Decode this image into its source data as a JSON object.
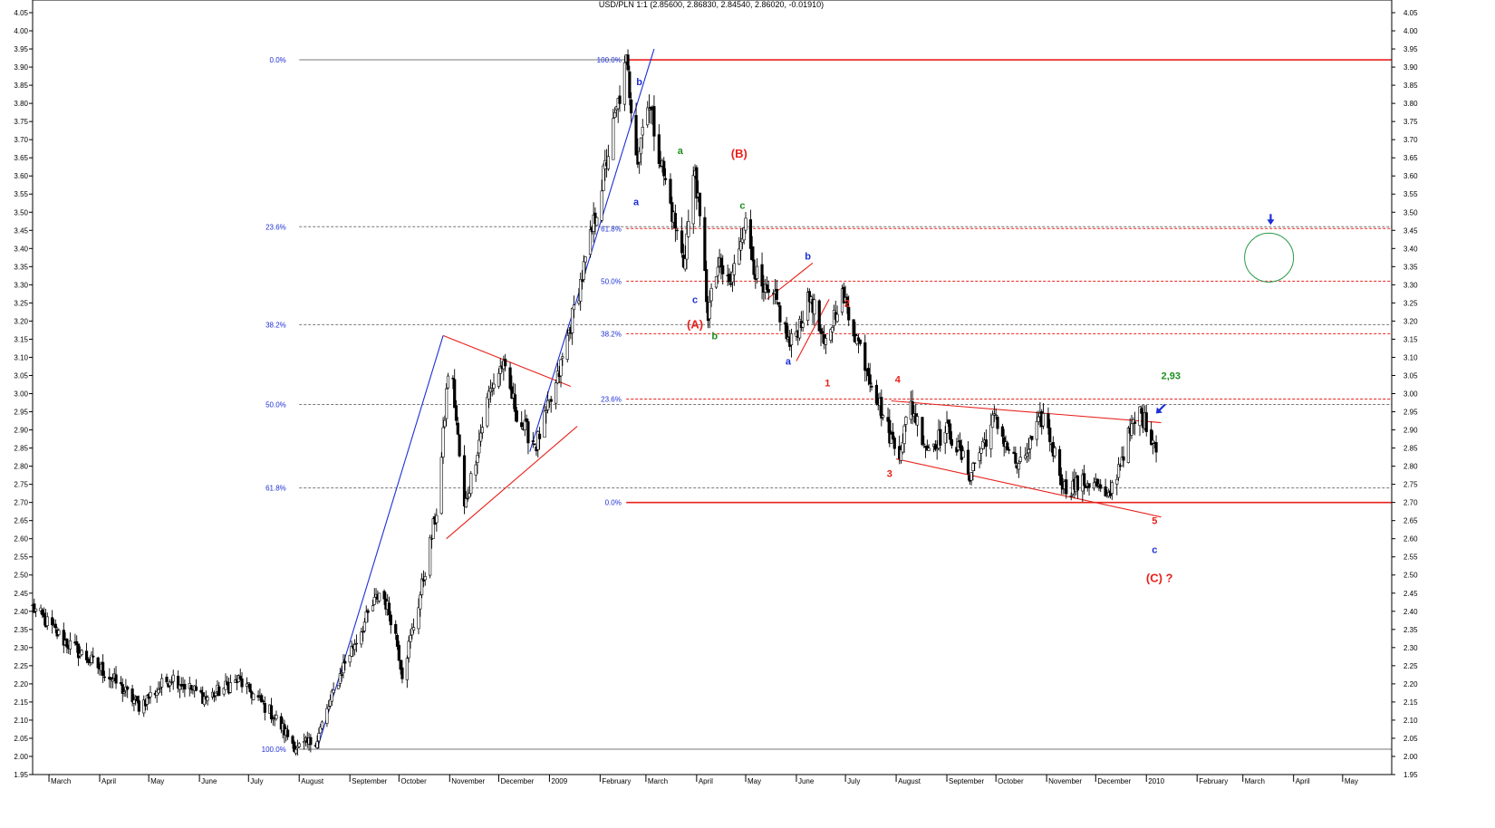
{
  "chart_data": {
    "type": "candlestick",
    "title": "USD/PLN 1:1 (2.85600, 2.86830, 2.84540, 2.86020, -0.01910)",
    "ylim": [
      1.95,
      4.05
    ],
    "y_ticks": [
      "1.95",
      "2.00",
      "2.05",
      "2.10",
      "2.15",
      "2.20",
      "2.25",
      "2.30",
      "2.35",
      "2.40",
      "2.45",
      "2.50",
      "2.55",
      "2.60",
      "2.65",
      "2.70",
      "2.75",
      "2.80",
      "2.85",
      "2.90",
      "2.95",
      "3.00",
      "3.05",
      "3.10",
      "3.15",
      "3.20",
      "3.25",
      "3.30",
      "3.35",
      "3.40",
      "3.45",
      "3.50",
      "3.55",
      "3.60",
      "3.65",
      "3.70",
      "3.75",
      "3.80",
      "3.85",
      "3.90",
      "3.95",
      "4.00",
      "4.05"
    ],
    "x_start": "2008-02-20",
    "x_end": "2010-05-31",
    "x_labels": [
      {
        "date": "2008-03-01",
        "label": "March"
      },
      {
        "date": "2008-04-01",
        "label": "April"
      },
      {
        "date": "2008-05-01",
        "label": "May"
      },
      {
        "date": "2008-06-01",
        "label": "June"
      },
      {
        "date": "2008-07-01",
        "label": "July"
      },
      {
        "date": "2008-08-01",
        "label": "August"
      },
      {
        "date": "2008-09-01",
        "label": "September"
      },
      {
        "date": "2008-10-01",
        "label": "October"
      },
      {
        "date": "2008-11-01",
        "label": "November"
      },
      {
        "date": "2008-12-01",
        "label": "December"
      },
      {
        "date": "2009-01-01",
        "label": "2009"
      },
      {
        "date": "2009-02-01",
        "label": "February"
      },
      {
        "date": "2009-03-01",
        "label": "March"
      },
      {
        "date": "2009-04-01",
        "label": "April"
      },
      {
        "date": "2009-05-01",
        "label": "May"
      },
      {
        "date": "2009-06-01",
        "label": "June"
      },
      {
        "date": "2009-07-01",
        "label": "July"
      },
      {
        "date": "2009-08-01",
        "label": "August"
      },
      {
        "date": "2009-09-01",
        "label": "September"
      },
      {
        "date": "2009-10-01",
        "label": "October"
      },
      {
        "date": "2009-11-01",
        "label": "November"
      },
      {
        "date": "2009-12-01",
        "label": "December"
      },
      {
        "date": "2010-01-01",
        "label": "2010"
      },
      {
        "date": "2010-02-01",
        "label": "February"
      },
      {
        "date": "2010-03-01",
        "label": "March"
      },
      {
        "date": "2010-04-01",
        "label": "April"
      },
      {
        "date": "2010-05-01",
        "label": "May"
      }
    ],
    "price_anchors": [
      [
        "2008-02-20",
        2.41
      ],
      [
        "2008-03-10",
        2.32
      ],
      [
        "2008-04-05",
        2.23
      ],
      [
        "2008-04-25",
        2.14
      ],
      [
        "2008-05-15",
        2.22
      ],
      [
        "2008-06-05",
        2.16
      ],
      [
        "2008-06-25",
        2.21
      ],
      [
        "2008-07-15",
        2.12
      ],
      [
        "2008-07-31",
        2.02
      ],
      [
        "2008-08-12",
        2.05
      ],
      [
        "2008-08-28",
        2.25
      ],
      [
        "2008-09-20",
        2.46
      ],
      [
        "2008-09-28",
        2.36
      ],
      [
        "2008-10-03",
        2.23
      ],
      [
        "2008-10-12",
        2.4
      ],
      [
        "2008-10-25",
        2.7
      ],
      [
        "2008-11-01",
        3.12
      ],
      [
        "2008-11-10",
        2.68
      ],
      [
        "2008-11-25",
        3.0
      ],
      [
        "2008-12-03",
        3.08
      ],
      [
        "2008-12-14",
        2.92
      ],
      [
        "2008-12-24",
        2.86
      ],
      [
        "2009-01-05",
        3.02
      ],
      [
        "2009-01-25",
        3.4
      ],
      [
        "2009-02-17",
        3.91
      ],
      [
        "2009-02-24",
        3.65
      ],
      [
        "2009-03-02",
        3.82
      ],
      [
        "2009-03-12",
        3.6
      ],
      [
        "2009-03-24",
        3.36
      ],
      [
        "2009-03-31",
        3.62
      ],
      [
        "2009-04-08",
        3.22
      ],
      [
        "2009-04-14",
        3.35
      ],
      [
        "2009-04-22",
        3.3
      ],
      [
        "2009-04-30",
        3.48
      ],
      [
        "2009-05-10",
        3.28
      ],
      [
        "2009-05-20",
        3.25
      ],
      [
        "2009-05-28",
        3.13
      ],
      [
        "2009-06-10",
        3.27
      ],
      [
        "2009-06-18",
        3.12
      ],
      [
        "2009-06-28",
        3.28
      ],
      [
        "2009-07-06",
        3.18
      ],
      [
        "2009-07-16",
        3.05
      ],
      [
        "2009-07-27",
        2.9
      ],
      [
        "2009-08-02",
        2.83
      ],
      [
        "2009-08-10",
        2.97
      ],
      [
        "2009-08-20",
        2.85
      ],
      [
        "2009-09-02",
        2.9
      ],
      [
        "2009-09-15",
        2.78
      ],
      [
        "2009-09-30",
        2.93
      ],
      [
        "2009-10-15",
        2.79
      ],
      [
        "2009-10-30",
        2.94
      ],
      [
        "2009-11-12",
        2.74
      ],
      [
        "2009-11-30",
        2.76
      ],
      [
        "2009-12-08",
        2.7
      ],
      [
        "2009-12-20",
        2.87
      ],
      [
        "2009-12-28",
        2.95
      ],
      [
        "2010-01-07",
        2.86
      ]
    ],
    "last_bar": {
      "open": 2.856,
      "high": 2.8683,
      "low": 2.8454,
      "close": 2.8602
    },
    "horizontal_lines": [
      {
        "y": 3.92,
        "color": "#e8211b",
        "style": "solid",
        "from": "2009-02-17",
        "to": "2010-05-31"
      },
      {
        "y": 2.7,
        "color": "#e8211b",
        "style": "solid",
        "from": "2009-02-17",
        "to": "2010-05-31"
      },
      {
        "y": 2.02,
        "color": "#777777",
        "style": "solid",
        "from": "2008-08-01",
        "to": "2010-05-31"
      },
      {
        "y": 3.92,
        "color": "#777777",
        "style": "solid",
        "from": "2008-08-01",
        "to": "2009-02-17"
      },
      {
        "y": 3.46,
        "color": "#777777",
        "style": "dash",
        "from": "2008-08-01",
        "to": "2010-05-31"
      },
      {
        "y": 3.19,
        "color": "#777777",
        "style": "dash",
        "from": "2008-08-01",
        "to": "2010-05-31"
      },
      {
        "y": 2.97,
        "color": "#777777",
        "style": "dash",
        "from": "2008-08-01",
        "to": "2010-05-31"
      },
      {
        "y": 2.74,
        "color": "#777777",
        "style": "dash",
        "from": "2008-08-01",
        "to": "2010-05-31"
      },
      {
        "y": 3.455,
        "color": "#e8211b",
        "style": "dash",
        "from": "2009-02-17",
        "to": "2010-05-31"
      },
      {
        "y": 3.31,
        "color": "#e8211b",
        "style": "dash",
        "from": "2009-02-17",
        "to": "2010-05-31"
      },
      {
        "y": 3.165,
        "color": "#e8211b",
        "style": "dash",
        "from": "2009-02-17",
        "to": "2010-05-31"
      },
      {
        "y": 2.985,
        "color": "#e8211b",
        "style": "dash",
        "from": "2009-02-17",
        "to": "2010-05-31"
      }
    ],
    "trend_lines": [
      {
        "color": "#1c2fd6",
        "from": [
          "2008-08-12",
          2.02
        ],
        "to": [
          "2008-10-28",
          3.16
        ]
      },
      {
        "color": "#1c2fd6",
        "from": [
          "2008-12-20",
          2.84
        ],
        "to": [
          "2009-03-06",
          3.95
        ]
      },
      {
        "color": "#e8211b",
        "from": [
          "2008-10-28",
          3.16
        ],
        "to": [
          "2009-01-14",
          3.02
        ]
      },
      {
        "color": "#e8211b",
        "from": [
          "2008-10-30",
          2.6
        ],
        "to": [
          "2009-01-18",
          2.91
        ]
      },
      {
        "color": "#e8211b",
        "from": [
          "2009-05-14",
          3.26
        ],
        "to": [
          "2009-06-11",
          3.36
        ]
      },
      {
        "color": "#e8211b",
        "from": [
          "2009-06-01",
          3.09
        ],
        "to": [
          "2009-06-21",
          3.26
        ]
      },
      {
        "color": "#e8211b",
        "from": [
          "2009-07-29",
          2.98
        ],
        "to": [
          "2010-01-10",
          2.92
        ]
      },
      {
        "color": "#e8211b",
        "from": [
          "2009-08-01",
          2.82
        ],
        "to": [
          "2010-01-10",
          2.66
        ]
      }
    ],
    "fib_labels": [
      {
        "text": "0.0%",
        "date": "2008-07-24",
        "y": 3.92
      },
      {
        "text": "23.6%",
        "date": "2008-07-24",
        "y": 3.46
      },
      {
        "text": "38.2%",
        "date": "2008-07-24",
        "y": 3.19
      },
      {
        "text": "50.0%",
        "date": "2008-07-24",
        "y": 2.97
      },
      {
        "text": "61.8%",
        "date": "2008-07-24",
        "y": 2.74
      },
      {
        "text": "100.0%",
        "date": "2008-07-24",
        "y": 2.02
      },
      {
        "text": "100.0%",
        "date": "2009-02-14",
        "y": 3.92
      },
      {
        "text": "61.8%",
        "date": "2009-02-14",
        "y": 3.455
      },
      {
        "text": "50.0%",
        "date": "2009-02-14",
        "y": 3.31
      },
      {
        "text": "38.2%",
        "date": "2009-02-14",
        "y": 3.165
      },
      {
        "text": "23.6%",
        "date": "2009-02-14",
        "y": 2.985
      },
      {
        "text": "0.0%",
        "date": "2009-02-14",
        "y": 2.7
      }
    ],
    "wave_labels": [
      {
        "text": "b",
        "date": "2009-02-25",
        "y": 3.85,
        "color": "#1c2fd6"
      },
      {
        "text": "a",
        "date": "2009-02-23",
        "y": 3.52,
        "color": "#1c2fd6"
      },
      {
        "text": "a",
        "date": "2009-03-22",
        "y": 3.66,
        "color": "#1e8f1e"
      },
      {
        "text": "(B)",
        "date": "2009-04-27",
        "y": 3.65,
        "color": "#e8211b",
        "big": true
      },
      {
        "text": "c",
        "date": "2009-04-29",
        "y": 3.51,
        "color": "#1e8f1e"
      },
      {
        "text": "c",
        "date": "2009-03-31",
        "y": 3.25,
        "color": "#1c2fd6"
      },
      {
        "text": "(A)",
        "date": "2009-03-31",
        "y": 3.18,
        "color": "#e8211b",
        "big": true
      },
      {
        "text": "b",
        "date": "2009-04-12",
        "y": 3.15,
        "color": "#1e8f1e"
      },
      {
        "text": "b",
        "date": "2009-06-08",
        "y": 3.37,
        "color": "#1c2fd6"
      },
      {
        "text": "a",
        "date": "2009-05-27",
        "y": 3.08,
        "color": "#1c2fd6"
      },
      {
        "text": "2",
        "date": "2009-07-02",
        "y": 3.24,
        "color": "#e8211b"
      },
      {
        "text": "1",
        "date": "2009-06-20",
        "y": 3.02,
        "color": "#e8211b"
      },
      {
        "text": "4",
        "date": "2009-08-02",
        "y": 3.03,
        "color": "#e8211b"
      },
      {
        "text": "3",
        "date": "2009-07-28",
        "y": 2.77,
        "color": "#e8211b"
      },
      {
        "text": "2,93",
        "date": "2010-01-16",
        "y": 3.04,
        "color": "#1e8f1e"
      },
      {
        "text": "5",
        "date": "2010-01-06",
        "y": 2.64,
        "color": "#e8211b"
      },
      {
        "text": "c",
        "date": "2010-01-06",
        "y": 2.56,
        "color": "#1c2fd6"
      },
      {
        "text": "(C) ?",
        "date": "2010-01-09",
        "y": 2.48,
        "color": "#e8211b",
        "big": true
      }
    ],
    "target_circle": {
      "date": "2010-03-17",
      "y": 3.375,
      "color": "#2a9a4a"
    },
    "arrows": [
      {
        "direction": "down",
        "date": "2010-03-18",
        "y": 3.47,
        "color": "#1c2fd6"
      },
      {
        "direction": "down-left",
        "date": "2010-01-08",
        "y": 2.95,
        "color": "#1c2fd6"
      }
    ]
  }
}
